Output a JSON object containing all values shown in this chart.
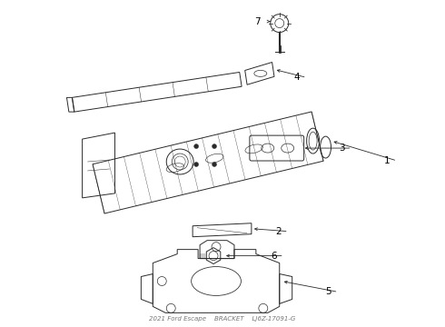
{
  "title": "2021 Ford Escape BRACKET Diagram for LJ6Z-17091-G",
  "bg_color": "#ffffff",
  "line_color": "#2a2a2a",
  "text_color": "#000000",
  "fig_width": 4.9,
  "fig_height": 3.6,
  "dpi": 100
}
